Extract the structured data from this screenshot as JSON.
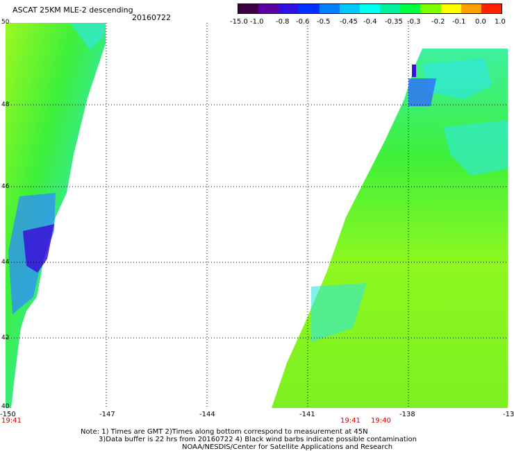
{
  "header": {
    "title": "ASCAT 25KM MLE-2 descending",
    "date": "20160722"
  },
  "colorbar": {
    "labels": [
      "-15.0",
      "-1.0",
      "-0.8",
      "-0.6",
      "-0.5",
      "-0.45",
      "-0.4",
      "-0.35",
      "-0.3",
      "-0.2",
      "-0.1",
      "0.0",
      "1.0"
    ],
    "colors": [
      "#3b0040",
      "#5a00a0",
      "#3010e0",
      "#0030ff",
      "#0080ff",
      "#00c8ff",
      "#00ffee",
      "#00f0a0",
      "#00ff40",
      "#80ff00",
      "#ffff00",
      "#ffa000",
      "#ff2000"
    ]
  },
  "map": {
    "lat_labels": [
      "50",
      "48",
      "46",
      "44",
      "42",
      "40"
    ],
    "lon_labels": [
      "-150",
      "-147",
      "-144",
      "-141",
      "-138",
      "-13"
    ],
    "time_labels": [
      "19:41",
      "19:41",
      "19:40"
    ],
    "swaths": [
      {
        "name": "west-swath",
        "color": "#3ef03a"
      },
      {
        "name": "east-swath",
        "color": "#8ef820"
      }
    ]
  },
  "notes": {
    "line1": "Note: 1) Times are GMT 2)Times along bottom correspond to measurement at 45N",
    "line2": "3)Data buffer is 22 hrs from 20160722 4) Black wind barbs indicate possible contamination",
    "line3": "NOAA/NESDIS/Center for Satellite Applications and Research"
  }
}
